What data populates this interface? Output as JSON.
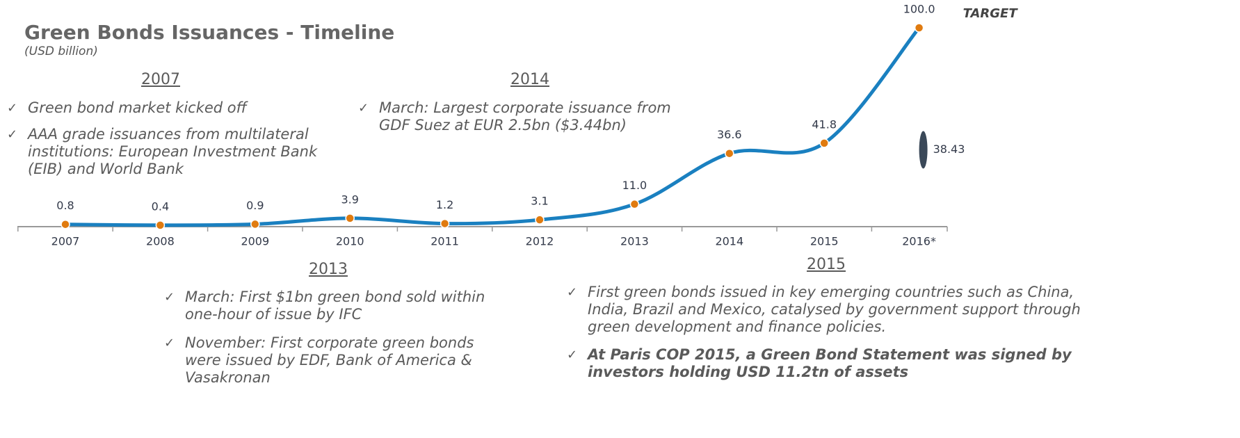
{
  "chart_data": {
    "type": "line",
    "title": "Green Bonds Issuances - Timeline",
    "subtitle": "(USD billion)",
    "categories": [
      "2007",
      "2008",
      "2009",
      "2010",
      "2011",
      "2012",
      "2013",
      "2014",
      "2015",
      "2016*"
    ],
    "series": [
      {
        "name": "Green bond issuances",
        "color": "#1a80c0",
        "values": [
          0.8,
          0.4,
          0.9,
          3.9,
          1.2,
          3.1,
          11.0,
          36.6,
          41.8,
          100.0
        ],
        "value_labels": [
          "0.8",
          "0.4",
          "0.9",
          "3.9",
          "1.2",
          "3.1",
          "11.0",
          "36.6",
          "41.8",
          "100.0"
        ],
        "marker_color": "#e07b10"
      }
    ],
    "ylim": [
      0,
      100
    ],
    "annotations": [
      {
        "text": "TARGET"
      }
    ],
    "marker": {
      "value": 38.43,
      "color": "#3a4858"
    },
    "sections": [
      {
        "heading": "2007",
        "items": [
          "Green bond market kicked off",
          "AAA grade issuances from multilateral institutions: European Investment Bank (EIB) and World Bank"
        ]
      },
      {
        "heading": "2014",
        "items": [
          "March: Largest corporate issuance from GDF Suez at EUR 2.5bn ($3.44bn)"
        ]
      },
      {
        "heading": "2013",
        "items": [
          "March: First $1bn green bond sold within one-hour of issue by IFC",
          "November: First corporate green bonds were issued by EDF, Bank of America & Vasakronan"
        ]
      },
      {
        "heading": "2015",
        "items": [
          "First green bonds issued in key emerging countries such as China, India, Brazil and Mexico, catalysed by government support through green development and finance policies.",
          "At Paris COP 2015, a Green Bond Statement was signed by investors holding USD 11.2tn of assets"
        ]
      }
    ]
  }
}
